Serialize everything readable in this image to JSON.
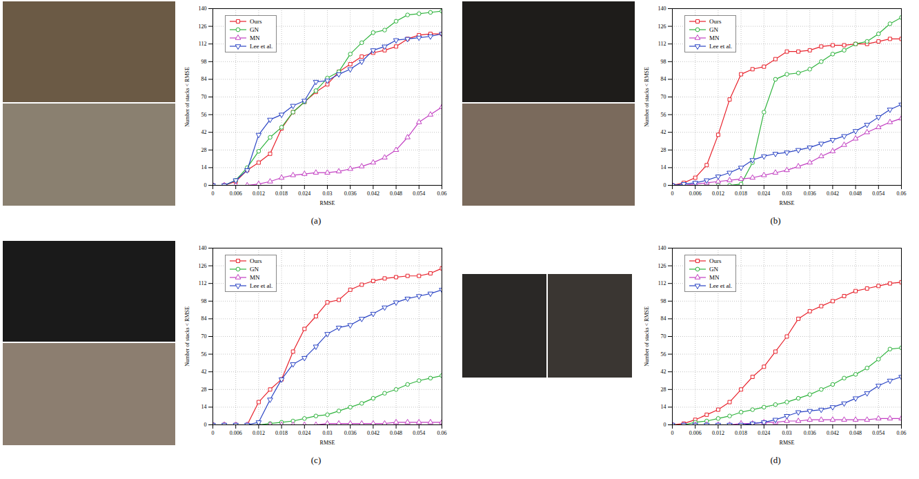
{
  "chart_data": [
    {
      "type": "line",
      "title": "(a)",
      "x_label": "RMSE",
      "y_label": "Number of stacks < RMSE",
      "x": [
        0,
        0.003,
        0.006,
        0.009,
        0.012,
        0.015,
        0.018,
        0.021,
        0.024,
        0.027,
        0.03,
        0.033,
        0.036,
        0.039,
        0.042,
        0.045,
        0.048,
        0.051,
        0.054,
        0.057,
        0.06
      ],
      "series": [
        {
          "name": "Ours",
          "color": "#e8202a",
          "marker": "square",
          "values": [
            0,
            0,
            3,
            12,
            18,
            25,
            45,
            58,
            66,
            74,
            80,
            90,
            96,
            102,
            105,
            107,
            110,
            116,
            119,
            120,
            120
          ]
        },
        {
          "name": "GN",
          "color": "#2eb33c",
          "marker": "circle",
          "values": [
            0,
            0,
            4,
            14,
            27,
            38,
            46,
            58,
            66,
            75,
            85,
            90,
            104,
            113,
            121,
            123,
            130,
            135,
            136,
            137,
            138
          ]
        },
        {
          "name": "MN",
          "color": "#c23fc2",
          "marker": "triangle",
          "values": [
            0,
            0,
            0,
            0,
            1,
            3,
            6,
            8,
            9,
            10,
            10,
            11,
            13,
            15,
            18,
            22,
            28,
            38,
            50,
            56,
            62
          ]
        },
        {
          "name": "Lee et al.",
          "color": "#2a44c4",
          "marker": "triangle-down",
          "values": [
            0,
            0,
            4,
            12,
            40,
            52,
            56,
            63,
            67,
            82,
            83,
            88,
            92,
            98,
            107,
            110,
            115,
            116,
            117,
            118,
            120
          ]
        }
      ],
      "xlim": [
        0,
        0.06
      ],
      "ylim": [
        0,
        140
      ],
      "xticks": [
        0,
        0.006,
        0.012,
        0.018,
        0.024,
        0.03,
        0.036,
        0.042,
        0.048,
        0.054,
        0.06
      ],
      "yticks": [
        0,
        14,
        28,
        42,
        56,
        70,
        84,
        98,
        112,
        126,
        140
      ],
      "grid": true,
      "legend": "top-left"
    },
    {
      "type": "line",
      "title": "(b)",
      "x_label": "RMSE",
      "y_label": "Number of stacks < RMSE",
      "x": [
        0,
        0.003,
        0.006,
        0.009,
        0.012,
        0.015,
        0.018,
        0.021,
        0.024,
        0.027,
        0.03,
        0.033,
        0.036,
        0.039,
        0.042,
        0.045,
        0.048,
        0.051,
        0.054,
        0.057,
        0.06
      ],
      "series": [
        {
          "name": "Ours",
          "color": "#e8202a",
          "marker": "square",
          "values": [
            0,
            2,
            6,
            16,
            40,
            68,
            88,
            92,
            94,
            100,
            106,
            106,
            107,
            110,
            111,
            111,
            112,
            112,
            114,
            116,
            116
          ]
        },
        {
          "name": "GN",
          "color": "#2eb33c",
          "marker": "circle",
          "values": [
            0,
            0,
            0,
            0,
            0,
            0,
            1,
            18,
            58,
            84,
            88,
            89,
            92,
            98,
            104,
            107,
            112,
            114,
            120,
            128,
            133
          ]
        },
        {
          "name": "MN",
          "color": "#c23fc2",
          "marker": "triangle",
          "values": [
            0,
            0,
            1,
            2,
            3,
            4,
            5,
            6,
            8,
            10,
            12,
            15,
            18,
            23,
            27,
            32,
            37,
            42,
            46,
            50,
            53
          ]
        },
        {
          "name": "Lee et al.",
          "color": "#2a44c4",
          "marker": "triangle-down",
          "values": [
            0,
            1,
            2,
            4,
            7,
            10,
            14,
            20,
            23,
            25,
            26,
            28,
            30,
            33,
            36,
            39,
            43,
            48,
            54,
            60,
            64
          ]
        }
      ],
      "xlim": [
        0,
        0.06
      ],
      "ylim": [
        0,
        140
      ],
      "xticks": [
        0,
        0.006,
        0.012,
        0.018,
        0.024,
        0.03,
        0.036,
        0.042,
        0.048,
        0.054,
        0.06
      ],
      "yticks": [
        0,
        14,
        28,
        42,
        56,
        70,
        84,
        98,
        112,
        126,
        140
      ],
      "grid": true,
      "legend": "top-left"
    },
    {
      "type": "line",
      "title": "(c)",
      "x_label": "RMSE",
      "y_label": "Number of stacks < RMSE",
      "x": [
        0,
        0.003,
        0.006,
        0.009,
        0.012,
        0.015,
        0.018,
        0.021,
        0.024,
        0.027,
        0.03,
        0.033,
        0.036,
        0.039,
        0.042,
        0.045,
        0.048,
        0.051,
        0.054,
        0.057,
        0.06
      ],
      "series": [
        {
          "name": "Ours",
          "color": "#e8202a",
          "marker": "square",
          "values": [
            0,
            0,
            0,
            0,
            18,
            28,
            36,
            58,
            76,
            86,
            97,
            99,
            107,
            111,
            114,
            116,
            117,
            118,
            118,
            120,
            124
          ]
        },
        {
          "name": "GN",
          "color": "#2eb33c",
          "marker": "circle",
          "values": [
            0,
            0,
            0,
            0,
            0,
            1,
            2,
            3,
            5,
            7,
            8,
            11,
            14,
            17,
            21,
            25,
            28,
            32,
            35,
            37,
            39
          ]
        },
        {
          "name": "MN",
          "color": "#c23fc2",
          "marker": "triangle",
          "values": [
            0,
            0,
            0,
            0,
            0,
            0,
            0,
            0,
            0,
            0,
            1,
            1,
            1,
            1,
            1,
            1,
            2,
            2,
            2,
            2,
            2
          ]
        },
        {
          "name": "Lee et al.",
          "color": "#2a44c4",
          "marker": "triangle-down",
          "values": [
            0,
            0,
            0,
            0,
            2,
            20,
            36,
            48,
            53,
            62,
            72,
            77,
            79,
            84,
            88,
            93,
            97,
            100,
            102,
            104,
            107
          ]
        }
      ],
      "xlim": [
        0,
        0.06
      ],
      "ylim": [
        0,
        140
      ],
      "xticks": [
        0,
        0.006,
        0.012,
        0.018,
        0.024,
        0.03,
        0.036,
        0.042,
        0.048,
        0.054,
        0.06
      ],
      "yticks": [
        0,
        14,
        28,
        42,
        56,
        70,
        84,
        98,
        112,
        126,
        140
      ],
      "grid": true,
      "legend": "top-left"
    },
    {
      "type": "line",
      "title": "(d)",
      "x_label": "RMSE",
      "y_label": "Number of stacks < RMSE",
      "x": [
        0,
        0.003,
        0.006,
        0.009,
        0.012,
        0.015,
        0.018,
        0.021,
        0.024,
        0.027,
        0.03,
        0.033,
        0.036,
        0.039,
        0.042,
        0.045,
        0.048,
        0.051,
        0.054,
        0.057,
        0.06
      ],
      "series": [
        {
          "name": "Ours",
          "color": "#e8202a",
          "marker": "square",
          "values": [
            0,
            1,
            4,
            8,
            12,
            18,
            28,
            38,
            46,
            58,
            70,
            84,
            90,
            94,
            98,
            102,
            106,
            108,
            110,
            112,
            113
          ]
        },
        {
          "name": "GN",
          "color": "#2eb33c",
          "marker": "circle",
          "values": [
            0,
            0,
            2,
            3,
            5,
            7,
            10,
            12,
            14,
            16,
            18,
            21,
            24,
            28,
            32,
            37,
            40,
            45,
            52,
            60,
            61
          ]
        },
        {
          "name": "MN",
          "color": "#c23fc2",
          "marker": "triangle",
          "values": [
            0,
            0,
            0,
            0,
            0,
            0,
            1,
            1,
            2,
            2,
            3,
            3,
            4,
            4,
            4,
            4,
            4,
            4,
            5,
            5,
            5
          ]
        },
        {
          "name": "Lee et al.",
          "color": "#2a44c4",
          "marker": "triangle-down",
          "values": [
            0,
            0,
            0,
            0,
            0,
            0,
            0,
            1,
            2,
            4,
            7,
            10,
            11,
            12,
            14,
            17,
            21,
            25,
            31,
            35,
            38
          ]
        }
      ],
      "xlim": [
        0,
        0.06
      ],
      "ylim": [
        0,
        140
      ],
      "xticks": [
        0,
        0.006,
        0.012,
        0.018,
        0.024,
        0.03,
        0.036,
        0.042,
        0.048,
        0.054,
        0.06
      ],
      "yticks": [
        0,
        14,
        28,
        42,
        56,
        70,
        84,
        98,
        112,
        126,
        140
      ],
      "grid": true,
      "legend": "top-left"
    }
  ]
}
